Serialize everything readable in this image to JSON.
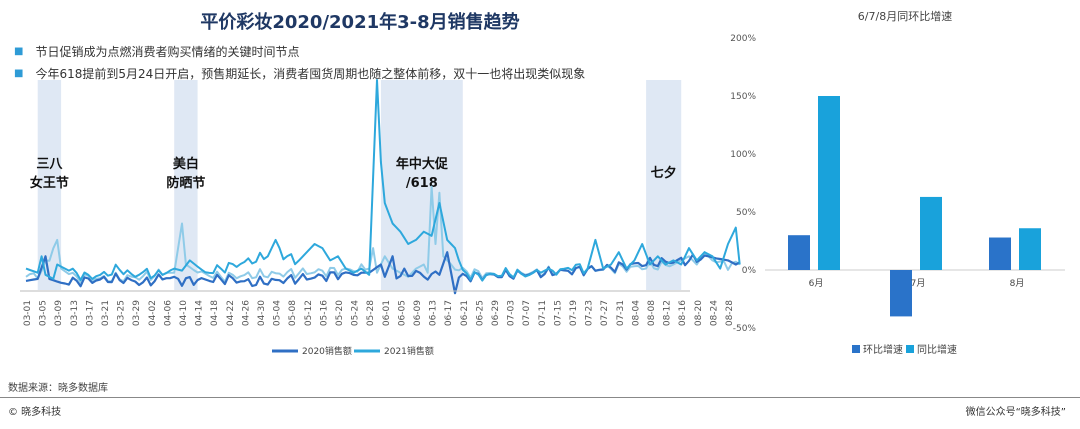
{
  "title": "平价彩妆2020/2021年3-8月销售趋势",
  "bullets": [
    "节日促销成为点燃消费者购买情绪的关键时间节点",
    "今年618提前到5月24日开启，预售期延长，消费者囤货周期也随之整体前移，双十一也将出现类似现象"
  ],
  "source": "数据来源：晓多数据库",
  "footer": {
    "left": "© 晓多科技",
    "right": "微信公众号“晓多科技”"
  },
  "colors": {
    "title": "#1f3864",
    "s2020": "#2f6fc4",
    "s2021": "#2ea8dc",
    "s2021_light": "#8fcbe8",
    "band": "#dfe8f4",
    "bar_mom": "#2a73c9",
    "bar_yoy": "#19a2db"
  },
  "chart_data": [
    {
      "type": "line",
      "title": "",
      "x_ticks": [
        "03-01",
        "03-05",
        "03-09",
        "03-13",
        "03-17",
        "03-21",
        "03-25",
        "03-29",
        "04-02",
        "04-06",
        "04-10",
        "04-14",
        "04-18",
        "04-22",
        "04-26",
        "04-30",
        "05-04",
        "05-08",
        "05-12",
        "05-16",
        "05-20",
        "05-24",
        "05-28",
        "06-01",
        "06-05",
        "06-09",
        "06-13",
        "06-17",
        "06-21",
        "06-25",
        "06-29",
        "07-03",
        "07-07",
        "07-11",
        "07-15",
        "07-19",
        "07-23",
        "07-27",
        "07-31",
        "08-04",
        "08-08",
        "08-12",
        "08-16",
        "08-20",
        "08-24",
        "08-28"
      ],
      "annotations": [
        {
          "label": "三八女王节",
          "lines": [
            "三八",
            "女王节"
          ],
          "range": [
            "03-04",
            "03-10"
          ]
        },
        {
          "label": "美白防晒节",
          "lines": [
            "美白",
            "防晒节"
          ],
          "range": [
            "04-08",
            "04-14"
          ]
        },
        {
          "label": "年中大促/618",
          "lines": [
            "年中大促",
            "/618"
          ],
          "range": [
            "05-31",
            "06-21"
          ]
        },
        {
          "label": "七夕",
          "lines": [
            "七夕"
          ],
          "range": [
            "08-07",
            "08-16"
          ]
        }
      ],
      "series": [
        {
          "name": "2020销售额",
          "key_points": [
            [
              0,
              2
            ],
            [
              3,
              3
            ],
            [
              5,
              14
            ],
            [
              6,
              3
            ],
            [
              9,
              1
            ],
            [
              14,
              2
            ],
            [
              24,
              3
            ],
            [
              30,
              1
            ],
            [
              36,
              4
            ],
            [
              40,
              2
            ],
            [
              52,
              3
            ],
            [
              58,
              1
            ],
            [
              69,
              3
            ],
            [
              75,
              4
            ],
            [
              80,
              5
            ],
            [
              86,
              6
            ],
            [
              88,
              6
            ],
            [
              91,
              10
            ],
            [
              92,
              4
            ],
            [
              94,
              14
            ],
            [
              95,
              5
            ],
            [
              101,
              6
            ],
            [
              102,
              4
            ],
            [
              106,
              5
            ],
            [
              108,
              16
            ],
            [
              110,
              -4
            ],
            [
              111,
              4
            ],
            [
              124,
              5
            ],
            [
              134,
              6
            ],
            [
              140,
              7
            ],
            [
              148,
              8
            ],
            [
              156,
              10
            ],
            [
              162,
              11
            ],
            [
              170,
              12
            ],
            [
              175,
              14
            ],
            [
              177,
              13
            ],
            [
              180,
              12
            ],
            [
              182,
              10
            ],
            [
              183,
              11
            ]
          ]
        },
        {
          "name": "2021销售额",
          "key_points": [
            [
              0,
              8
            ],
            [
              3,
              6
            ],
            [
              4,
              14
            ],
            [
              5,
              5
            ],
            [
              7,
              3
            ],
            [
              8,
              10
            ],
            [
              10,
              8
            ],
            [
              12,
              6
            ],
            [
              16,
              4
            ],
            [
              20,
              5
            ],
            [
              24,
              8
            ],
            [
              28,
              4
            ],
            [
              30,
              6
            ],
            [
              34,
              5
            ],
            [
              38,
              8
            ],
            [
              40,
              7
            ],
            [
              42,
              12
            ],
            [
              44,
              9
            ],
            [
              46,
              6
            ],
            [
              50,
              8
            ],
            [
              54,
              10
            ],
            [
              58,
              12
            ],
            [
              62,
              14
            ],
            [
              64,
              22
            ],
            [
              66,
              14
            ],
            [
              70,
              12
            ],
            [
              72,
              16
            ],
            [
              74,
              20
            ],
            [
              76,
              18
            ],
            [
              78,
              12
            ],
            [
              80,
              14
            ],
            [
              82,
              8
            ],
            [
              84,
              6
            ],
            [
              86,
              8
            ],
            [
              88,
              5
            ],
            [
              90,
              100
            ],
            [
              91,
              60
            ],
            [
              92,
              40
            ],
            [
              94,
              30
            ],
            [
              96,
              26
            ],
            [
              98,
              20
            ],
            [
              100,
              22
            ],
            [
              102,
              26
            ],
            [
              104,
              24
            ],
            [
              106,
              40
            ],
            [
              108,
              22
            ],
            [
              110,
              18
            ],
            [
              112,
              6
            ],
            [
              116,
              4
            ],
            [
              120,
              5
            ],
            [
              124,
              6
            ],
            [
              128,
              5
            ],
            [
              132,
              6
            ],
            [
              134,
              8
            ],
            [
              136,
              6
            ],
            [
              140,
              9
            ],
            [
              144,
              8
            ],
            [
              146,
              22
            ],
            [
              148,
              8
            ],
            [
              150,
              10
            ],
            [
              152,
              16
            ],
            [
              154,
              8
            ],
            [
              156,
              12
            ],
            [
              158,
              20
            ],
            [
              160,
              10
            ],
            [
              162,
              14
            ],
            [
              164,
              10
            ],
            [
              166,
              12
            ],
            [
              168,
              10
            ],
            [
              170,
              18
            ],
            [
              172,
              12
            ],
            [
              174,
              16
            ],
            [
              176,
              14
            ],
            [
              178,
              8
            ],
            [
              180,
              20
            ],
            [
              182,
              28
            ],
            [
              183,
              10
            ]
          ]
        },
        {
          "name": "",
          "key_points": [
            [
              0,
              4
            ],
            [
              4,
              6
            ],
            [
              8,
              22
            ],
            [
              9,
              8
            ],
            [
              12,
              4
            ],
            [
              20,
              3
            ],
            [
              30,
              4
            ],
            [
              36,
              6
            ],
            [
              38,
              6
            ],
            [
              40,
              30
            ],
            [
              41,
              10
            ],
            [
              44,
              6
            ],
            [
              50,
              4
            ],
            [
              60,
              5
            ],
            [
              70,
              6
            ],
            [
              80,
              7
            ],
            [
              88,
              8
            ],
            [
              89,
              18
            ],
            [
              90,
              6
            ],
            [
              92,
              14
            ],
            [
              94,
              8
            ],
            [
              96,
              6
            ],
            [
              98,
              4
            ],
            [
              100,
              8
            ],
            [
              102,
              10
            ],
            [
              103,
              6
            ],
            [
              104,
              48
            ],
            [
              105,
              20
            ],
            [
              106,
              45
            ],
            [
              107,
              14
            ],
            [
              110,
              8
            ],
            [
              114,
              6
            ],
            [
              120,
              5
            ],
            [
              130,
              6
            ],
            [
              140,
              7
            ],
            [
              150,
              8
            ],
            [
              160,
              9
            ],
            [
              166,
              10
            ],
            [
              168,
              12
            ],
            [
              170,
              14
            ],
            [
              172,
              10
            ],
            [
              174,
              16
            ],
            [
              176,
              12
            ],
            [
              178,
              10
            ],
            [
              183,
              10
            ]
          ]
        }
      ],
      "legend": [
        "2020销售额",
        "2021销售额"
      ],
      "legend_position": "bottom"
    },
    {
      "type": "bar",
      "title": "6/7/8月同环比增速",
      "categories": [
        "6月",
        "7月",
        "8月"
      ],
      "series": [
        {
          "name": "环比增速",
          "values": [
            30,
            -40,
            28
          ]
        },
        {
          "name": "同比增速",
          "values": [
            150,
            63,
            36
          ]
        }
      ],
      "ylim": [
        -50,
        200
      ],
      "y_ticks": [
        "-50%",
        "0%",
        "50%",
        "100%",
        "150%",
        "200%"
      ],
      "legend_position": "bottom"
    }
  ]
}
